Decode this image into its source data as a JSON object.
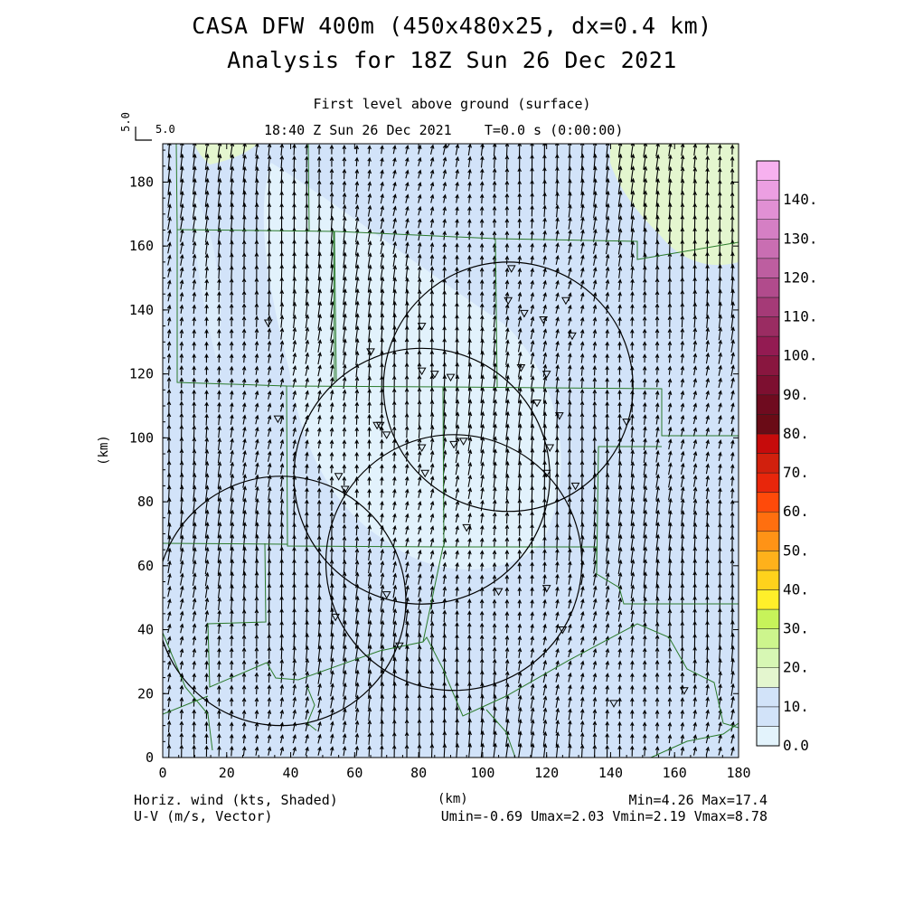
{
  "titles": {
    "line1": "CASA DFW 400m (450x480x25, dx=0.4 km)",
    "line2": "Analysis for 18Z Sun 26 Dec 2021",
    "subtitle": "First level above ground (surface)",
    "time": "18:40 Z Sun 26 Dec 2021    T=0.0 s (0:00:00)",
    "ref_vector_label": "5.0",
    "ref_vector_side": "5.0"
  },
  "footer": {
    "left_line1": "Horiz. wind (kts, Shaded)",
    "left_line2": "U-V (m/s, Vector)",
    "center": "(km)",
    "right_line1": "Min=4.26 Max=17.4",
    "right_line2": "Umin=-0.69 Umax=2.03 Vmin=2.19 Vmax=8.78"
  },
  "chart_data": {
    "type": "heatmap",
    "title": "CASA DFW 400m (450x480x25, dx=0.4 km)",
    "subtitle": "Analysis for 18Z Sun 26 Dec 2021",
    "xlabel": "(km)",
    "ylabel": "(km)",
    "xlim": [
      0,
      180
    ],
    "ylim": [
      0,
      192
    ],
    "x_ticks": [
      "0",
      "20",
      "40",
      "60",
      "80",
      "100",
      "120",
      "140",
      "160",
      "180"
    ],
    "y_ticks": [
      "0",
      "20",
      "40",
      "60",
      "80",
      "100",
      "120",
      "140",
      "160",
      "180"
    ],
    "field": "Horiz. wind (kts, Shaded)",
    "vectors": "U-V (m/s, Vector)",
    "min": 4.26,
    "max": 17.4,
    "umin": -0.69,
    "umax": 2.03,
    "vmin": 2.19,
    "vmax": 8.78,
    "colorbar": {
      "tick_labels": [
        "0.0",
        "10.",
        "20.",
        "30.",
        "40.",
        "50.",
        "60.",
        "70.",
        "80.",
        "90.",
        "100.",
        "110.",
        "120.",
        "130.",
        "140."
      ],
      "colors": [
        "#e3f3fc",
        "#d2e3f9",
        "#d2e3f9",
        "#e4f6cf",
        "#d7f7b4",
        "#cdf58d",
        "#c7f35a",
        "#ffef2a",
        "#ffd21c",
        "#ffb11b",
        "#ff9316",
        "#ff6f0f",
        "#ff4a0a",
        "#e8260b",
        "#d1200d",
        "#c60b0b",
        "#6a0b16",
        "#6f0b1f",
        "#7d0f30",
        "#89163f",
        "#931b52",
        "#9a2c62",
        "#a53a77",
        "#b14b8c",
        "#bd5ea0",
        "#c96eb2",
        "#d57fc4",
        "#e190d4",
        "#ec9fe2",
        "#f7b1ef"
      ]
    },
    "shading_regions": [
      {
        "level": "0-10",
        "color": "#e3f3fc",
        "area": "central"
      },
      {
        "level": "10-20",
        "color": "#d2e3f9",
        "area": "background"
      },
      {
        "level": "20-30",
        "color": "#e4f6cf",
        "area": "north-east and north-west corners"
      }
    ],
    "radar_rings": [
      {
        "center_x": 108,
        "center_y": 116,
        "radius": 39
      },
      {
        "center_x": 81,
        "center_y": 88,
        "radius": 40
      },
      {
        "center_x": 37,
        "center_y": 49,
        "radius": 39
      },
      {
        "center_x": 91,
        "center_y": 61,
        "radius": 40
      }
    ],
    "stations": [
      [
        89,
        192
      ],
      [
        109,
        153
      ],
      [
        108,
        143
      ],
      [
        113,
        139
      ],
      [
        126,
        143
      ],
      [
        119,
        137
      ],
      [
        128,
        132
      ],
      [
        33,
        136
      ],
      [
        65,
        127
      ],
      [
        81,
        135
      ],
      [
        81,
        121
      ],
      [
        85,
        120
      ],
      [
        90,
        119
      ],
      [
        112,
        122
      ],
      [
        120,
        120
      ],
      [
        117,
        111
      ],
      [
        121,
        97
      ],
      [
        124,
        107
      ],
      [
        145,
        105
      ],
      [
        36,
        106
      ],
      [
        67,
        104
      ],
      [
        68,
        104
      ],
      [
        70,
        101
      ],
      [
        81,
        97
      ],
      [
        91,
        98
      ],
      [
        94,
        99
      ],
      [
        82,
        89
      ],
      [
        120,
        89
      ],
      [
        129,
        85
      ],
      [
        55,
        88
      ],
      [
        57,
        84
      ],
      [
        95,
        72
      ],
      [
        70,
        51
      ],
      [
        105,
        52
      ],
      [
        120,
        53
      ],
      [
        54,
        44
      ],
      [
        125,
        40
      ],
      [
        74,
        35
      ],
      [
        141,
        17
      ],
      [
        163,
        21
      ]
    ]
  }
}
